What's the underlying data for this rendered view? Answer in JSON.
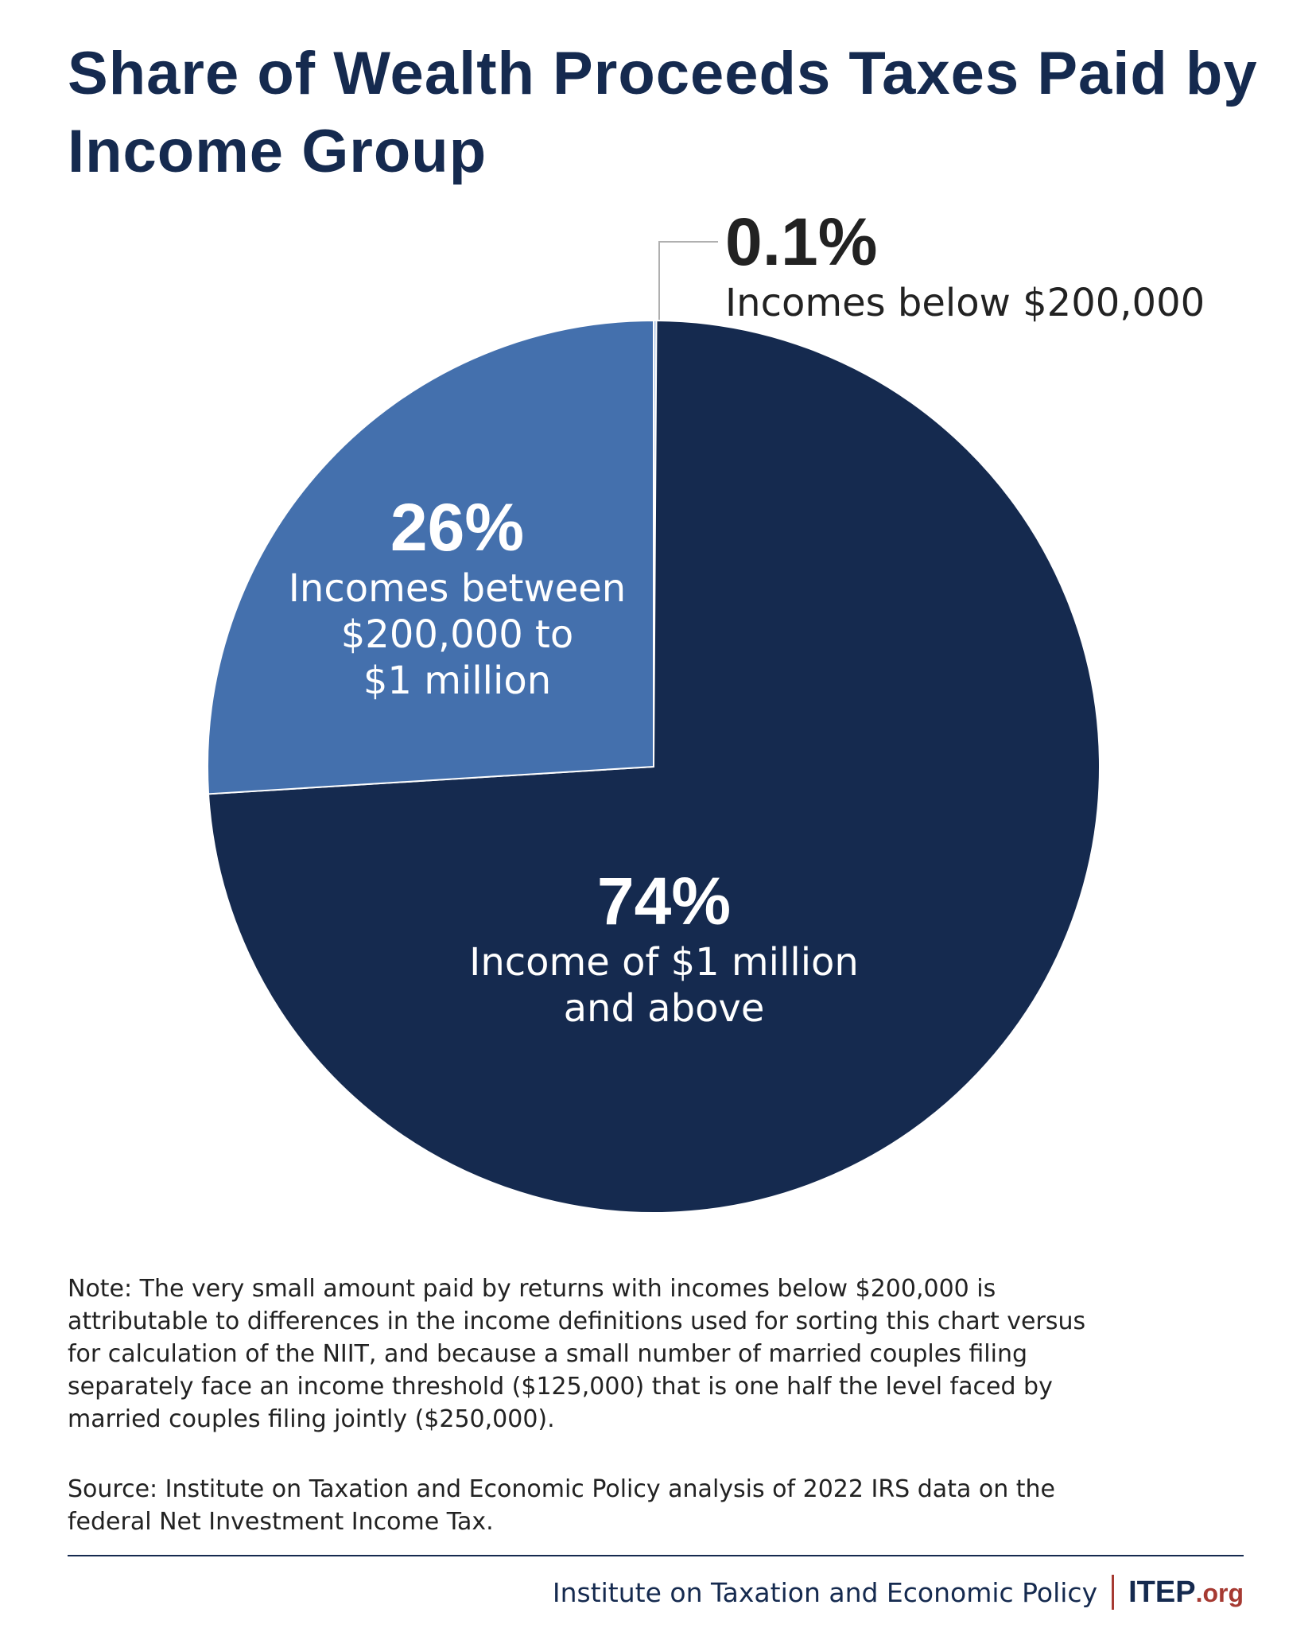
{
  "chart_data": {
    "type": "pie",
    "title": "Share of Wealth Proceeds Taxes Paid by Income Group",
    "categories": [
      "Incomes below $200,000",
      "Income of $1 million\nand above",
      "Incomes between\n$200,000 to\n$1 million"
    ],
    "values": [
      0.1,
      74,
      26
    ],
    "value_labels": [
      "0.1%",
      "74%",
      "26%"
    ],
    "colors": [
      "#a9c1e3",
      "#152a4f",
      "#4470ad"
    ]
  },
  "note": "Note: The very small amount paid by returns with incomes below $200,000 is attributable to differences in the income definitions used for sorting this chart versus for calculation of the NIIT, and because a small number of married couples filing separately face an income threshold ($125,000) that is one half the level faced by married couples filing jointly ($250,000).",
  "source": "Source: Institute on Taxation and Economic Policy analysis of 2022 IRS data on the federal Net Investment Income Tax.",
  "footer": {
    "organization": "Institute on Taxation and Economic Policy",
    "logo": "ITEP",
    "logo_suffix": ".org"
  }
}
